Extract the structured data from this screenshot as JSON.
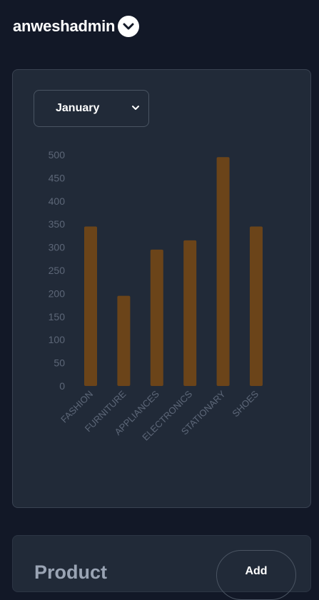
{
  "header": {
    "username": "anweshadmin",
    "toggle_icon": "chevron-down-icon"
  },
  "filter": {
    "selected_month": "January",
    "icon": "chevron-down-icon"
  },
  "chart_data": {
    "type": "bar",
    "categories": [
      "FASHION",
      "FURNITURE",
      "APPLIANCES",
      "ELECTRONICS",
      "STATIONARY",
      "SHOES"
    ],
    "values": [
      345,
      195,
      295,
      315,
      495,
      345
    ],
    "ylim": [
      0,
      500
    ],
    "yticks": [
      0,
      50,
      100,
      150,
      200,
      250,
      300,
      350,
      400,
      450,
      500
    ],
    "bar_color": "#6b4419",
    "grid": false,
    "legend": "none"
  },
  "product_section": {
    "title": "Product",
    "add_label": "Add"
  }
}
